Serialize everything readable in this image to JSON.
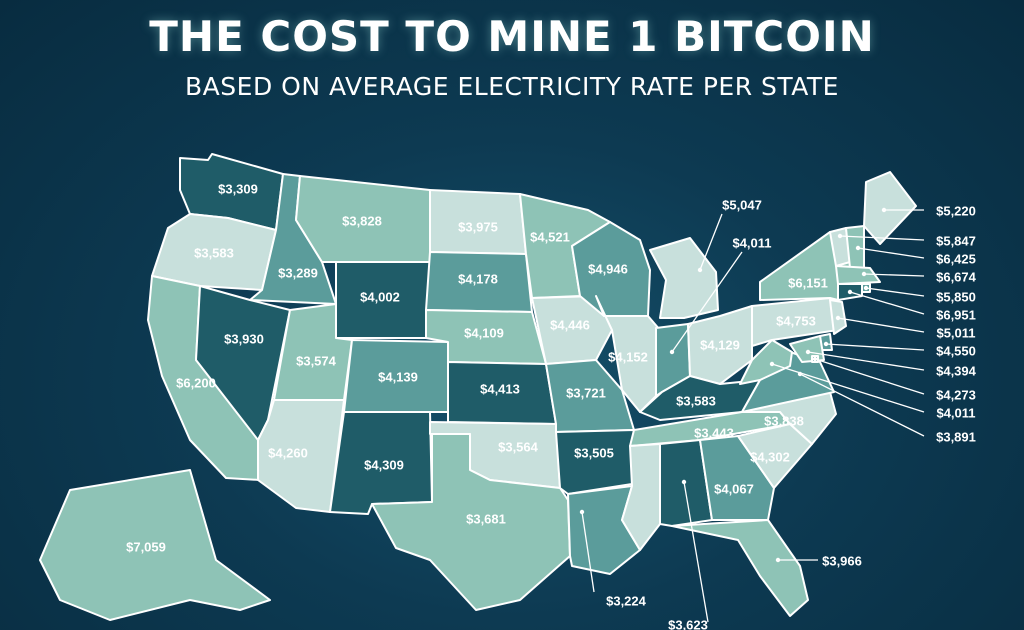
{
  "title": "THE COST TO MINE 1 BITCOIN",
  "subtitle": "BASED ON AVERAGE ELECTRICITY RATE PER STATE",
  "colors": {
    "light": "#c8e0dc",
    "mid_light": "#8ec3b6",
    "mid": "#5b9c9b",
    "dark": "#1f5c68",
    "border": "#ffffff",
    "background": "#0d3a52"
  },
  "states": [
    {
      "code": "WA",
      "cost": "$3,309"
    },
    {
      "code": "OR",
      "cost": "$3,583"
    },
    {
      "code": "CA",
      "cost": "$6,200"
    },
    {
      "code": "ID",
      "cost": "$3,289"
    },
    {
      "code": "NV",
      "cost": "$3,930"
    },
    {
      "code": "MT",
      "cost": "$3,828"
    },
    {
      "code": "WY",
      "cost": "$4,002"
    },
    {
      "code": "UT",
      "cost": "$3,574"
    },
    {
      "code": "AZ",
      "cost": "$4,260"
    },
    {
      "code": "CO",
      "cost": "$4,139"
    },
    {
      "code": "NM",
      "cost": "$4,309"
    },
    {
      "code": "ND",
      "cost": "$3,975"
    },
    {
      "code": "SD",
      "cost": "$4,178"
    },
    {
      "code": "NE",
      "cost": "$4,109"
    },
    {
      "code": "KS",
      "cost": "$4,413"
    },
    {
      "code": "OK",
      "cost": "$3,564"
    },
    {
      "code": "TX",
      "cost": "$3,681"
    },
    {
      "code": "MN",
      "cost": "$4,521"
    },
    {
      "code": "IA",
      "cost": "$4,446"
    },
    {
      "code": "MO",
      "cost": "$3,721"
    },
    {
      "code": "AR",
      "cost": "$3,505"
    },
    {
      "code": "LA",
      "cost": "$3,224"
    },
    {
      "code": "WI",
      "cost": "$4,946"
    },
    {
      "code": "IL",
      "cost": "$4,152"
    },
    {
      "code": "MI",
      "cost": "$5,047"
    },
    {
      "code": "IN",
      "cost": "$4,011"
    },
    {
      "code": "OH",
      "cost": "$4,129"
    },
    {
      "code": "KY",
      "cost": "$3,583"
    },
    {
      "code": "TN",
      "cost": "$3,443"
    },
    {
      "code": "MS",
      "cost": ""
    },
    {
      "code": "AL",
      "cost": "$3,623"
    },
    {
      "code": "GA",
      "cost": "$4,067"
    },
    {
      "code": "FL",
      "cost": "$3,966"
    },
    {
      "code": "SC",
      "cost": "$4,302"
    },
    {
      "code": "NC",
      "cost": "$3,838"
    },
    {
      "code": "VA",
      "cost": "$3,891"
    },
    {
      "code": "WV",
      "cost": "$4,011"
    },
    {
      "code": "PA",
      "cost": "$4,753"
    },
    {
      "code": "NY",
      "cost": "$6,151"
    },
    {
      "code": "ME",
      "cost": "$5,220"
    },
    {
      "code": "VT",
      "cost": "$5,847"
    },
    {
      "code": "NH",
      "cost": "$6,425"
    },
    {
      "code": "MA",
      "cost": "$6,674"
    },
    {
      "code": "RI",
      "cost": "$5,850"
    },
    {
      "code": "CT",
      "cost": "$6,951"
    },
    {
      "code": "NJ",
      "cost": "$5,011"
    },
    {
      "code": "DE",
      "cost": "$4,550"
    },
    {
      "code": "MD",
      "cost": "$4,394"
    },
    {
      "code": "DC",
      "cost": "$4,273"
    },
    {
      "code": "AK",
      "cost": "$7,059"
    }
  ]
}
